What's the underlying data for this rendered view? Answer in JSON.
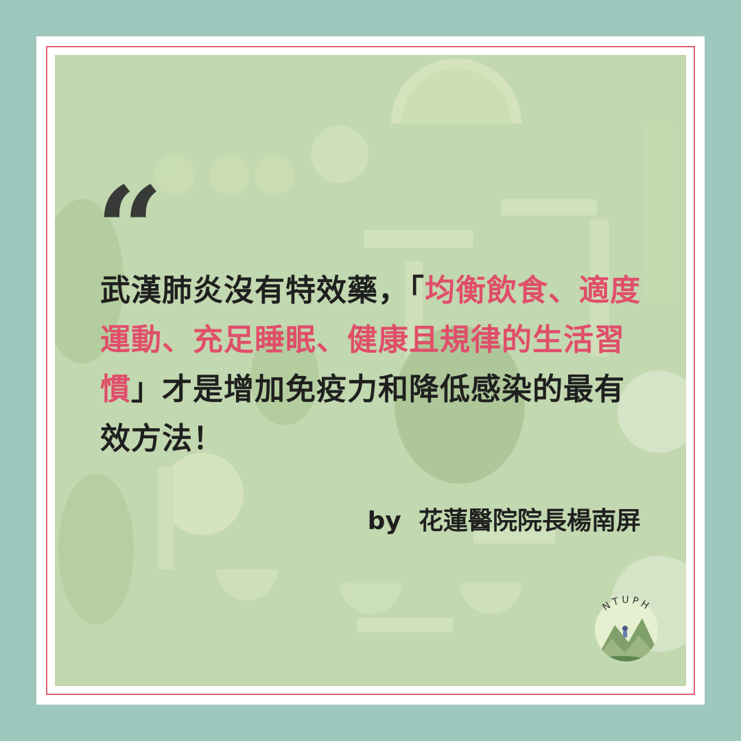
{
  "quote": {
    "mark": "“",
    "seg1": "武漢肺炎沒有特效藥，「",
    "seg2": "均衡飲食、適度運動、充足睡眠、健康且規律的生活習慣",
    "seg3": "」才是增加免疫力和降低感染的最有效方法！"
  },
  "attribution": {
    "prefix": "by",
    "name": "花蓮醫院院長楊南屏"
  },
  "logo": {
    "text": "NTUPH"
  },
  "colors": {
    "frame": "#9cc8bd",
    "inner_border": "#e0607a",
    "photo_tint": "#c2d8b0",
    "highlight": "#e04e6a",
    "text": "#1f1f1f"
  }
}
